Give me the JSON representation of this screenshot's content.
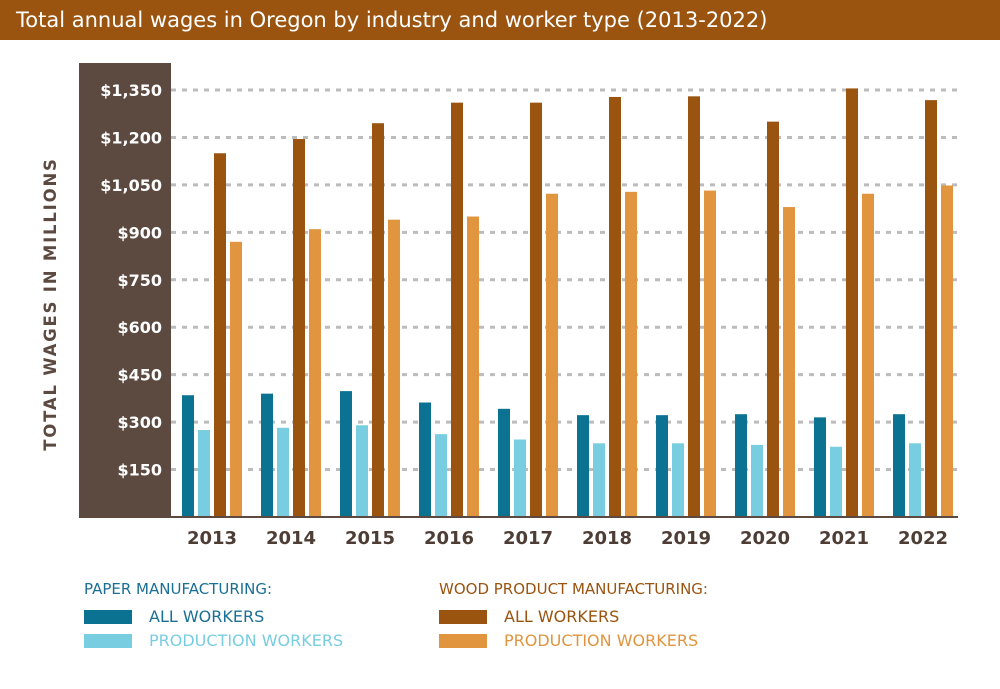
{
  "title": "Total annual wages in Oregon by industry and worker type (2013-2022)",
  "colors": {
    "title_bg": "#9a540f",
    "axis_panel": "#5c4a40",
    "paper_all": "#0b7391",
    "paper_prod": "#78cde0",
    "wood_all": "#9a540f",
    "wood_prod": "#e1953f",
    "paper_heading": "#1a6f94",
    "wood_heading": "#9a540f",
    "year_text": "#4d3d35",
    "grid": "#bcbcbc"
  },
  "legend": {
    "paper": {
      "heading": "PAPER MANUFACTURING:",
      "all_label": "ALL WORKERS",
      "prod_label": "PRODUCTION WORKERS"
    },
    "wood": {
      "heading": "WOOD PRODUCT MANUFACTURING:",
      "all_label": "ALL WORKERS",
      "prod_label": "PRODUCTION WORKERS"
    }
  },
  "chart_data": {
    "type": "bar",
    "title": "Total annual wages in Oregon by industry and worker type (2013-2022)",
    "ylabel": "TOTAL WAGES IN MILLIONS",
    "xlabel": "",
    "categories": [
      "2013",
      "2014",
      "2015",
      "2016",
      "2017",
      "2018",
      "2019",
      "2020",
      "2021",
      "2022"
    ],
    "ylim": [
      0,
      1350
    ],
    "yticks": [
      150,
      300,
      450,
      600,
      750,
      900,
      1050,
      1200,
      1350
    ],
    "ytick_labels": [
      "$150",
      "$300",
      "$450",
      "$600",
      "$750",
      "$900",
      "$1,050",
      "$1,200",
      "$1,350"
    ],
    "grid": true,
    "legend_position": "bottom",
    "series": [
      {
        "name": "PAPER MANUFACTURING: ALL WORKERS",
        "values": [
          385,
          390,
          398,
          362,
          342,
          322,
          322,
          325,
          315,
          325
        ]
      },
      {
        "name": "PAPER MANUFACTURING: PRODUCTION WORKERS",
        "values": [
          275,
          282,
          290,
          262,
          245,
          233,
          233,
          228,
          222,
          233
        ]
      },
      {
        "name": "WOOD PRODUCT MANUFACTURING: ALL WORKERS",
        "values": [
          1150,
          1195,
          1245,
          1310,
          1310,
          1328,
          1330,
          1250,
          1355,
          1318
        ]
      },
      {
        "name": "WOOD PRODUCT MANUFACTURING: PRODUCTION WORKERS",
        "values": [
          870,
          910,
          940,
          950,
          1022,
          1028,
          1032,
          980,
          1022,
          1048
        ]
      }
    ]
  }
}
